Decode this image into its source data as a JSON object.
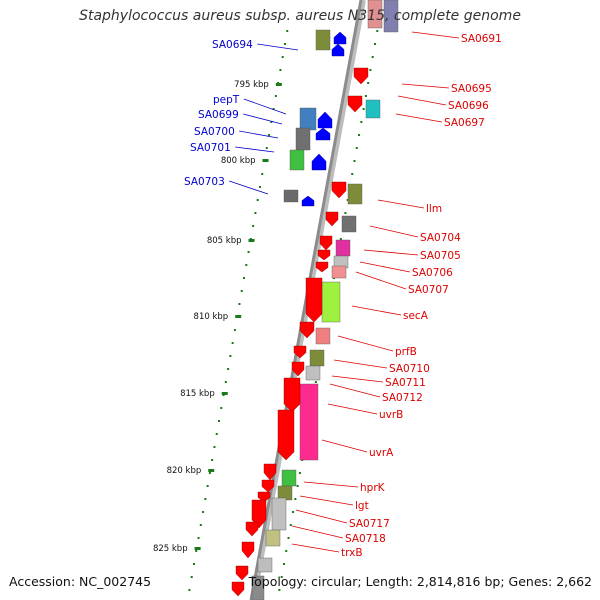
{
  "title": "Staphylococcus aureus subsp. aureus N315, complete genome",
  "accession": "Accession: NC_002745",
  "summary": "Topology: circular; Length: 2,814,816 bp; Genes: 2,662",
  "colors": {
    "forward_label": "#0000cc",
    "reverse_label": "#dd0000",
    "forward_arrow": "#0000ff",
    "reverse_arrow": "#ff0000",
    "backbone": "#8c8c8c",
    "tick": "#1a7a1a"
  },
  "scale_labels": [
    "795 kbp",
    "800 kbp",
    "805 kbp",
    "810 kbp",
    "815 kbp",
    "820 kbp",
    "825 kbp"
  ],
  "forward_genes": [
    "SA0694",
    "pepT",
    "SA0699",
    "SA0700",
    "SA0701",
    "SA0703"
  ],
  "reverse_genes": [
    "SA0691",
    "SA0695",
    "SA0696",
    "SA0697",
    "llm",
    "SA0704",
    "SA0705",
    "SA0706",
    "SA0707",
    "secA",
    "prfB",
    "SA0710",
    "SA0711",
    "SA0712",
    "uvrB",
    "uvrA",
    "hprK",
    "lgt",
    "SA0717",
    "SA0718",
    "trxB"
  ]
}
